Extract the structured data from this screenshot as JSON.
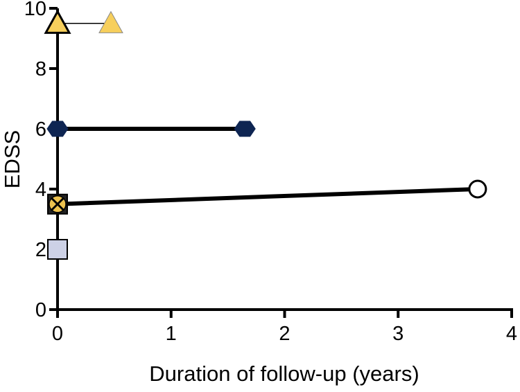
{
  "chart_data": {
    "type": "line",
    "xlabel": "Duration of follow-up (years)",
    "ylabel": "EDSS",
    "xlim": [
      0,
      4
    ],
    "ylim": [
      0,
      10
    ],
    "xticks": [
      "0",
      "1",
      "2",
      "3",
      "4"
    ],
    "yticks": [
      "0",
      "2",
      "4",
      "6",
      "8",
      "10"
    ],
    "grid": false,
    "series": [
      {
        "marker": "triangle",
        "color": "#F7CF5C",
        "line": "thin",
        "x": [
          0,
          0.47
        ],
        "y": [
          9.5,
          9.5
        ]
      },
      {
        "marker": "hexagon",
        "color": "#0E2552",
        "line": "thick",
        "x": [
          0,
          1.65
        ],
        "y": [
          6,
          6
        ]
      },
      {
        "marker": "open-circle",
        "color": "#FFFFFF",
        "line": "thick",
        "x": [
          0,
          3.7
        ],
        "y": [
          3.5,
          4
        ]
      },
      {
        "marker": "circle-x-on-square",
        "color": "#EDC24E",
        "line": "none",
        "x": [
          0
        ],
        "y": [
          3.5
        ]
      },
      {
        "marker": "square",
        "color": "#CDD1E6",
        "line": "none",
        "x": [
          0
        ],
        "y": [
          2
        ]
      }
    ]
  }
}
